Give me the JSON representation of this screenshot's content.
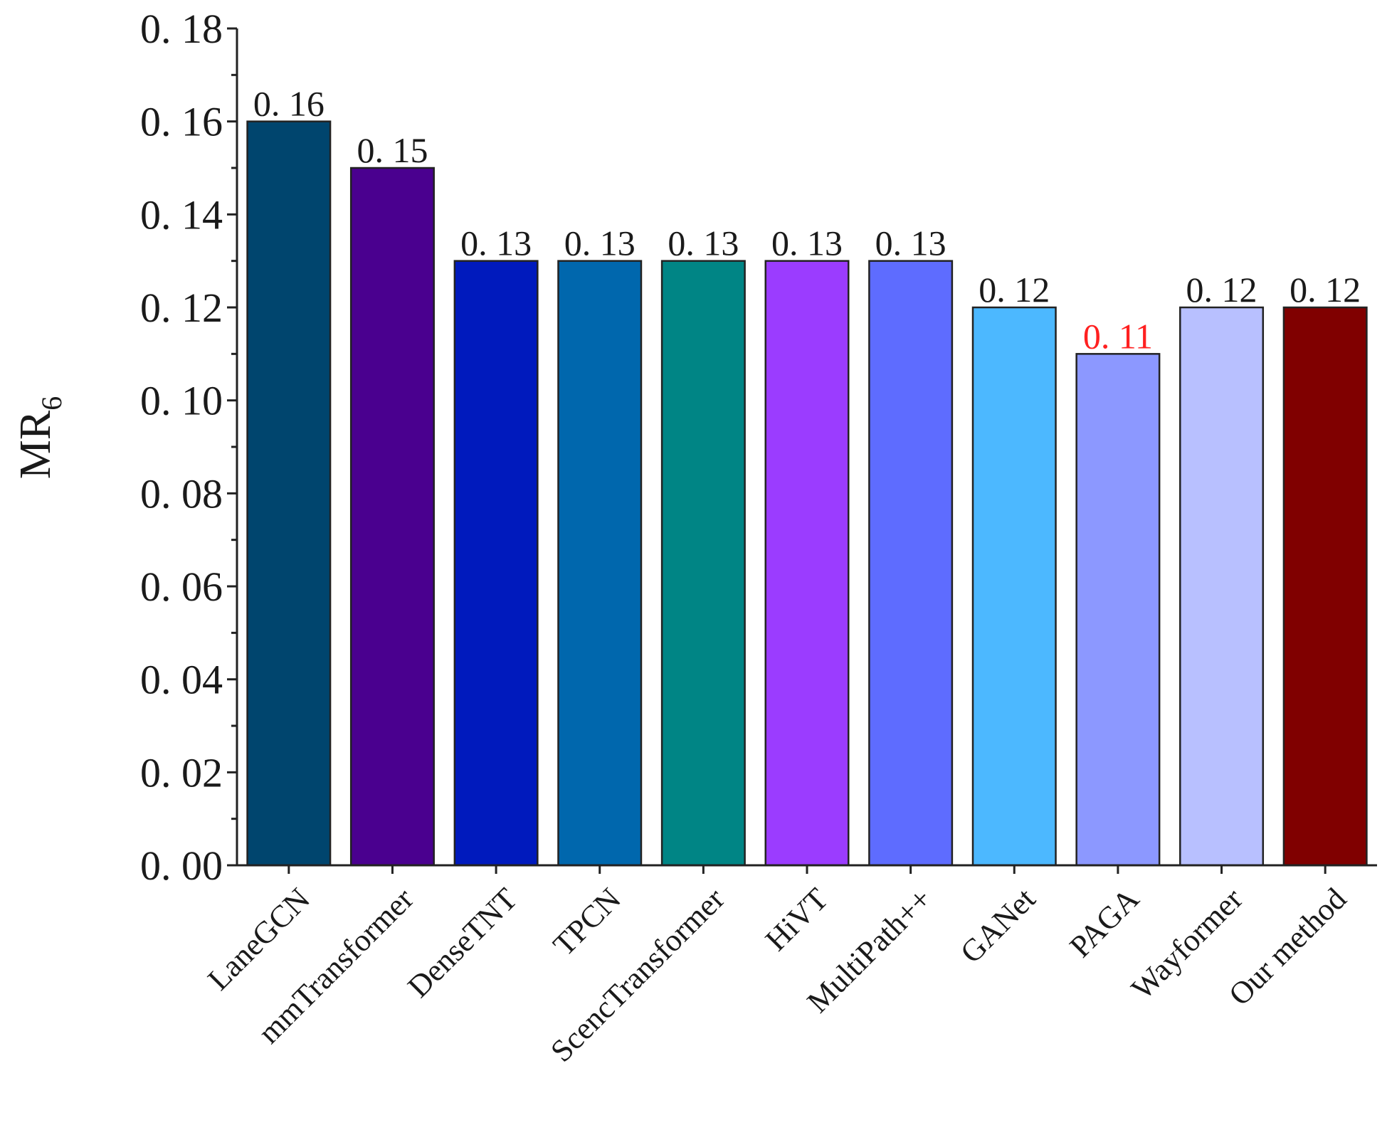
{
  "chart_data": {
    "type": "bar",
    "categories": [
      "LaneGCN",
      "mmTransformer",
      "DenseTNT",
      "TPCN",
      "ScencTransformer",
      "HiVT",
      "MultiPath++",
      "GANet",
      "PAGA",
      "Wayformer",
      "Our method"
    ],
    "values": [
      0.16,
      0.15,
      0.13,
      0.13,
      0.13,
      0.13,
      0.13,
      0.12,
      0.11,
      0.12,
      0.12
    ],
    "data_labels": [
      "0. 16",
      "0. 15",
      "0. 13",
      "0. 13",
      "0. 13",
      "0. 13",
      "0. 13",
      "0. 12",
      "0. 11",
      "0. 12",
      "0. 12"
    ],
    "data_label_colors": [
      "#1a1a1a",
      "#1a1a1a",
      "#1a1a1a",
      "#1a1a1a",
      "#1a1a1a",
      "#1a1a1a",
      "#1a1a1a",
      "#1a1a1a",
      "#ff2020",
      "#1a1a1a",
      "#1a1a1a"
    ],
    "colors": [
      "#00456e",
      "#4a008f",
      "#001abd",
      "#0067ad",
      "#008585",
      "#9b3cff",
      "#5e6cff",
      "#4cb8ff",
      "#8c98ff",
      "#b8c0ff",
      "#800000"
    ],
    "ylabel_main": "MR",
    "ylabel_sub": "6",
    "xlabel": "",
    "title": "",
    "ylim": [
      0,
      0.18
    ],
    "yticks": [
      0.0,
      0.02,
      0.04,
      0.06,
      0.08,
      0.1,
      0.12,
      0.14,
      0.16,
      0.18
    ],
    "ytick_labels": [
      "0. 00",
      "0. 02",
      "0. 04",
      "0. 06",
      "0. 08",
      "0. 10",
      "0. 12",
      "0. 14",
      "0. 16",
      "0. 18"
    ],
    "grid": false,
    "legend": "none"
  }
}
